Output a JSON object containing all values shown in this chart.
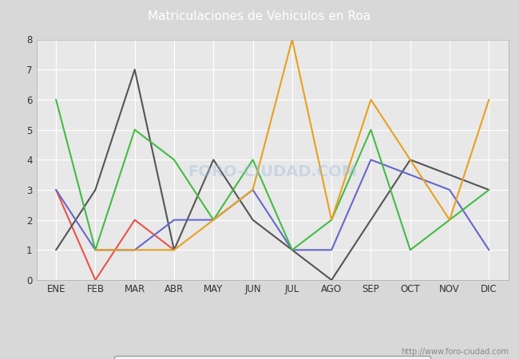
{
  "title": "Matriculaciones de Vehiculos en Roa",
  "months": [
    "ENE",
    "FEB",
    "MAR",
    "ABR",
    "MAY",
    "JUN",
    "JUL",
    "AGO",
    "SEP",
    "OCT",
    "NOV",
    "DIC"
  ],
  "series": {
    "2024": [
      3,
      0,
      2,
      1,
      null,
      null,
      null,
      null,
      null,
      null,
      null,
      null
    ],
    "2023": [
      1,
      3,
      7,
      1,
      4,
      2,
      1,
      0,
      2,
      4,
      null,
      3
    ],
    "2022": [
      3,
      1,
      1,
      2,
      2,
      3,
      1,
      1,
      4,
      null,
      3,
      1
    ],
    "2021": [
      6,
      1,
      5,
      4,
      2,
      4,
      1,
      2,
      5,
      1,
      2,
      3
    ],
    "2020": [
      null,
      1,
      null,
      1,
      2,
      3,
      8,
      2,
      6,
      null,
      2,
      6
    ]
  },
  "colors": {
    "2024": "#e8534a",
    "2023": "#555555",
    "2022": "#6666cc",
    "2021": "#44bb44",
    "2020": "#e8a020"
  },
  "ylim": [
    0.0,
    8.0
  ],
  "yticks": [
    0.0,
    1.0,
    2.0,
    3.0,
    4.0,
    5.0,
    6.0,
    7.0,
    8.0
  ],
  "header_color": "#4d8fc4",
  "title_color": "white",
  "bg_color": "#d8d8d8",
  "plot_bg_color": "#e8e8e8",
  "watermark": "http://www.foro-ciudad.com",
  "linewidth": 1.5,
  "fig_width": 6.5,
  "fig_height": 4.5,
  "dpi": 100
}
